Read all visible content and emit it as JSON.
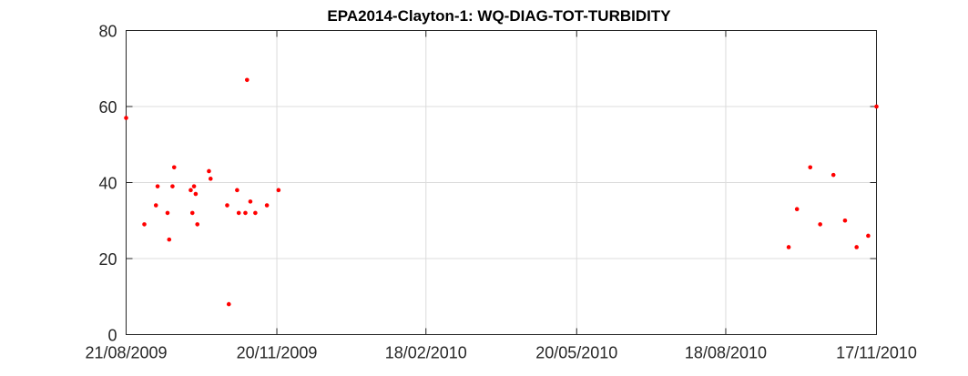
{
  "chart_data": {
    "type": "scatter",
    "title": "EPA2014-Clayton-1: WQ-DIAG-TOT-TURBIDITY",
    "xlabel": "",
    "ylabel": "",
    "x_axis_type": "date",
    "xlim": [
      "2009-08-21",
      "2010-11-17"
    ],
    "ylim": [
      0,
      80
    ],
    "x_ticks": [
      "2009-08-21",
      "2009-11-20",
      "2010-02-18",
      "2010-05-20",
      "2010-08-18",
      "2010-11-17"
    ],
    "x_tick_labels": [
      "21/08/2009",
      "20/11/2009",
      "18/02/2010",
      "20/05/2010",
      "18/08/2010",
      "17/11/2010"
    ],
    "y_ticks": [
      0,
      20,
      40,
      60,
      80
    ],
    "y_tick_labels": [
      "0",
      "20",
      "40",
      "60",
      "80"
    ],
    "grid": true,
    "marker_color": "#ff0000",
    "series": [
      {
        "name": "",
        "points": [
          {
            "x": "2009-08-21",
            "y": 57
          },
          {
            "x": "2009-09-01",
            "y": 29
          },
          {
            "x": "2009-09-08",
            "y": 34
          },
          {
            "x": "2009-09-09",
            "y": 39
          },
          {
            "x": "2009-09-15",
            "y": 32
          },
          {
            "x": "2009-09-16",
            "y": 25
          },
          {
            "x": "2009-09-18",
            "y": 39
          },
          {
            "x": "2009-09-19",
            "y": 44
          },
          {
            "x": "2009-09-29",
            "y": 38
          },
          {
            "x": "2009-09-30",
            "y": 32
          },
          {
            "x": "2009-10-01",
            "y": 39
          },
          {
            "x": "2009-10-02",
            "y": 37
          },
          {
            "x": "2009-10-03",
            "y": 29
          },
          {
            "x": "2009-10-10",
            "y": 43
          },
          {
            "x": "2009-10-11",
            "y": 41
          },
          {
            "x": "2009-10-21",
            "y": 34
          },
          {
            "x": "2009-10-22",
            "y": 8
          },
          {
            "x": "2009-10-27",
            "y": 38
          },
          {
            "x": "2009-10-28",
            "y": 32
          },
          {
            "x": "2009-11-01",
            "y": 32
          },
          {
            "x": "2009-11-02",
            "y": 67
          },
          {
            "x": "2009-11-04",
            "y": 35
          },
          {
            "x": "2009-11-07",
            "y": 32
          },
          {
            "x": "2009-11-14",
            "y": 34
          },
          {
            "x": "2009-11-21",
            "y": 38
          },
          {
            "x": "2010-09-25",
            "y": 23
          },
          {
            "x": "2010-09-30",
            "y": 33
          },
          {
            "x": "2010-10-08",
            "y": 44
          },
          {
            "x": "2010-10-14",
            "y": 29
          },
          {
            "x": "2010-10-22",
            "y": 42
          },
          {
            "x": "2010-10-29",
            "y": 30
          },
          {
            "x": "2010-11-05",
            "y": 23
          },
          {
            "x": "2010-11-12",
            "y": 26
          },
          {
            "x": "2010-11-17",
            "y": 60
          }
        ]
      }
    ]
  }
}
